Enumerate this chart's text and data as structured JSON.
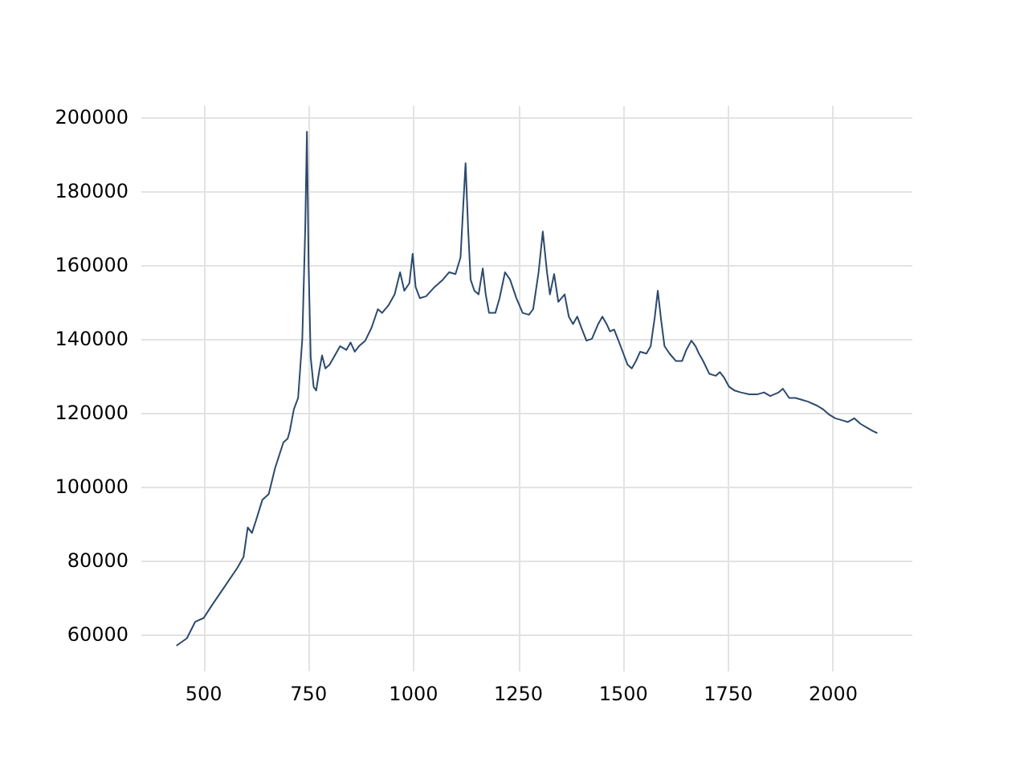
{
  "chart_data": {
    "type": "line",
    "color": "#2c4a6e",
    "grid": true,
    "marker": "none",
    "line_style": "solid",
    "xlim": [
      351.5,
      2188.5
    ],
    "xticks": [
      500,
      750,
      1000,
      1250,
      1500,
      1750,
      2000
    ],
    "ylim": [
      50050,
      202950
    ],
    "yticks": [
      60000,
      80000,
      100000,
      120000,
      140000,
      160000,
      180000,
      200000
    ],
    "x": [
      435,
      460,
      480,
      500,
      520,
      550,
      580,
      595,
      605,
      615,
      625,
      640,
      655,
      670,
      690,
      700,
      705,
      715,
      725,
      735,
      742,
      746,
      750,
      755,
      762,
      768,
      775,
      782,
      790,
      800,
      815,
      825,
      840,
      850,
      860,
      870,
      885,
      900,
      915,
      925,
      940,
      955,
      968,
      978,
      990,
      998,
      1005,
      1015,
      1030,
      1050,
      1070,
      1085,
      1100,
      1112,
      1118,
      1124,
      1130,
      1136,
      1145,
      1155,
      1165,
      1172,
      1180,
      1195,
      1205,
      1218,
      1230,
      1245,
      1260,
      1275,
      1285,
      1298,
      1308,
      1318,
      1325,
      1335,
      1345,
      1360,
      1370,
      1380,
      1390,
      1400,
      1412,
      1425,
      1440,
      1450,
      1460,
      1468,
      1478,
      1490,
      1500,
      1510,
      1520,
      1530,
      1540,
      1555,
      1565,
      1575,
      1582,
      1590,
      1598,
      1610,
      1625,
      1640,
      1650,
      1662,
      1672,
      1680,
      1690,
      1705,
      1720,
      1730,
      1740,
      1752,
      1765,
      1780,
      1800,
      1820,
      1835,
      1850,
      1870,
      1880,
      1895,
      1910,
      1925,
      1940,
      1960,
      1975,
      1990,
      2005,
      2020,
      2035,
      2050,
      2065,
      2080,
      2095,
      2105
    ],
    "values": [
      57000,
      59000,
      63500,
      64500,
      68000,
      73000,
      78000,
      81000,
      89000,
      87500,
      91000,
      96500,
      98000,
      105000,
      112000,
      113000,
      115000,
      121000,
      124000,
      140000,
      170000,
      196000,
      160000,
      135000,
      127000,
      126000,
      131000,
      135500,
      132000,
      133000,
      136000,
      138000,
      137000,
      139000,
      136500,
      138000,
      139500,
      143000,
      148000,
      147000,
      149000,
      152000,
      158000,
      153000,
      155000,
      163000,
      154000,
      151000,
      151500,
      154000,
      156000,
      158000,
      157500,
      162000,
      175000,
      187500,
      170000,
      156000,
      153000,
      152000,
      159000,
      152000,
      147000,
      147000,
      151000,
      158000,
      156000,
      151000,
      147000,
      146500,
      148000,
      158000,
      169000,
      158000,
      152000,
      157500,
      150000,
      152000,
      146000,
      144000,
      146000,
      143000,
      139500,
      140000,
      144000,
      146000,
      144000,
      142000,
      142500,
      139000,
      136000,
      133000,
      132000,
      134000,
      136500,
      136000,
      138000,
      146000,
      153000,
      145000,
      138000,
      136000,
      134000,
      134000,
      137000,
      139500,
      138000,
      136000,
      134000,
      130500,
      130000,
      131000,
      129500,
      127000,
      126000,
      125500,
      125000,
      125000,
      125500,
      124500,
      125500,
      126500,
      124000,
      124000,
      123500,
      123000,
      122000,
      121000,
      119500,
      118500,
      118000,
      117500,
      118500,
      117000,
      116000,
      115000,
      114500
    ]
  }
}
